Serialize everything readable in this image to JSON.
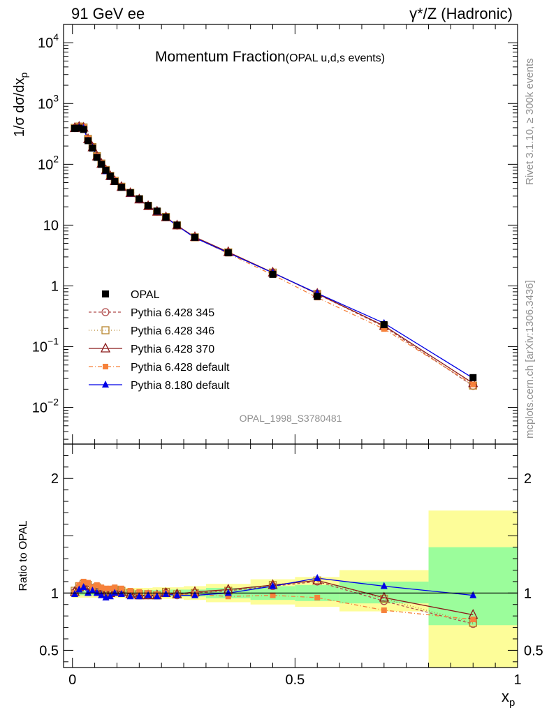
{
  "header": {
    "left": "91 GeV ee",
    "right": "γ*/Z (Hadronic)"
  },
  "chart_data": {
    "type": "scatter",
    "title": "Momentum Fraction",
    "subtitle": "(OPAL u,d,s events)",
    "xlabel": "x",
    "xlabel_sub": "p",
    "ylabel": "1/σ dσ/dx",
    "ylabel_sub": "p",
    "ratio_ylabel": "Ratio to OPAL",
    "watermark": "OPAL_1998_S3780481",
    "side_top": "Rivet 3.1.10, ≥ 300k events",
    "side_bottom": "mcplots.cern.ch [arXiv:1306.3436]",
    "xlim": [
      -0.02,
      1.0
    ],
    "ylim": [
      0.0025,
      20000
    ],
    "yscale": "log",
    "ratio_ylim": [
      0.35,
      2.3
    ],
    "x_ticks": [
      {
        "v": 0,
        "label": "0"
      },
      {
        "v": 0.5,
        "label": "0.5"
      },
      {
        "v": 1,
        "label": "1"
      }
    ],
    "y_ticks": [
      {
        "v": 10000,
        "base": "10",
        "exp": "4"
      },
      {
        "v": 1000,
        "base": "10",
        "exp": "3"
      },
      {
        "v": 100,
        "base": "10",
        "exp": "2"
      },
      {
        "v": 10,
        "base": "10",
        "exp": ""
      },
      {
        "v": 1,
        "base": "1",
        "exp": ""
      },
      {
        "v": 0.1,
        "base": "10",
        "exp": "−1"
      },
      {
        "v": 0.01,
        "base": "10",
        "exp": "−2"
      }
    ],
    "ratio_ticks": [
      {
        "v": 2,
        "label": "2"
      },
      {
        "v": 1,
        "label": "1"
      },
      {
        "v": 0.5,
        "label": "0.5"
      }
    ],
    "bins": [
      {
        "lo": 0.0,
        "hi": 0.01,
        "x": 0.005,
        "y": 390,
        "y_lo": 0.98,
        "y_hi": 1.02,
        "g_lo": 0.96,
        "g_hi": 1.04
      },
      {
        "lo": 0.01,
        "hi": 0.02,
        "x": 0.015,
        "y": 395,
        "y_lo": 0.98,
        "y_hi": 1.02,
        "g_lo": 0.96,
        "g_hi": 1.04
      },
      {
        "lo": 0.02,
        "hi": 0.03,
        "x": 0.025,
        "y": 375,
        "y_lo": 0.98,
        "y_hi": 1.02,
        "g_lo": 0.96,
        "g_hi": 1.04
      },
      {
        "lo": 0.03,
        "hi": 0.04,
        "x": 0.035,
        "y": 245,
        "y_lo": 0.98,
        "y_hi": 1.02,
        "g_lo": 0.96,
        "g_hi": 1.04
      },
      {
        "lo": 0.04,
        "hi": 0.05,
        "x": 0.045,
        "y": 185,
        "y_lo": 0.98,
        "y_hi": 1.02,
        "g_lo": 0.96,
        "g_hi": 1.04
      },
      {
        "lo": 0.05,
        "hi": 0.06,
        "x": 0.055,
        "y": 130,
        "y_lo": 0.98,
        "y_hi": 1.02,
        "g_lo": 0.96,
        "g_hi": 1.04
      },
      {
        "lo": 0.06,
        "hi": 0.07,
        "x": 0.065,
        "y": 100,
        "y_lo": 0.98,
        "y_hi": 1.02,
        "g_lo": 0.96,
        "g_hi": 1.04
      },
      {
        "lo": 0.07,
        "hi": 0.08,
        "x": 0.075,
        "y": 80,
        "y_lo": 0.98,
        "y_hi": 1.02,
        "g_lo": 0.96,
        "g_hi": 1.04
      },
      {
        "lo": 0.08,
        "hi": 0.09,
        "x": 0.085,
        "y": 64,
        "y_lo": 0.98,
        "y_hi": 1.02,
        "g_lo": 0.96,
        "g_hi": 1.04
      },
      {
        "lo": 0.09,
        "hi": 0.1,
        "x": 0.095,
        "y": 52,
        "y_lo": 0.98,
        "y_hi": 1.02,
        "g_lo": 0.96,
        "g_hi": 1.04
      },
      {
        "lo": 0.1,
        "hi": 0.12,
        "x": 0.11,
        "y": 42,
        "y_lo": 0.98,
        "y_hi": 1.02,
        "g_lo": 0.96,
        "g_hi": 1.04
      },
      {
        "lo": 0.12,
        "hi": 0.14,
        "x": 0.13,
        "y": 34,
        "y_lo": 0.975,
        "y_hi": 1.025,
        "g_lo": 0.955,
        "g_hi": 1.045
      },
      {
        "lo": 0.14,
        "hi": 0.16,
        "x": 0.15,
        "y": 27,
        "y_lo": 0.975,
        "y_hi": 1.025,
        "g_lo": 0.955,
        "g_hi": 1.045
      },
      {
        "lo": 0.16,
        "hi": 0.18,
        "x": 0.17,
        "y": 21,
        "y_lo": 0.975,
        "y_hi": 1.025,
        "g_lo": 0.955,
        "g_hi": 1.045
      },
      {
        "lo": 0.18,
        "hi": 0.2,
        "x": 0.19,
        "y": 17,
        "y_lo": 0.975,
        "y_hi": 1.025,
        "g_lo": 0.95,
        "g_hi": 1.05
      },
      {
        "lo": 0.2,
        "hi": 0.22,
        "x": 0.21,
        "y": 13.5,
        "y_lo": 0.975,
        "y_hi": 1.025,
        "g_lo": 0.95,
        "g_hi": 1.05
      },
      {
        "lo": 0.22,
        "hi": 0.25,
        "x": 0.235,
        "y": 10,
        "y_lo": 0.97,
        "y_hi": 1.03,
        "g_lo": 0.95,
        "g_hi": 1.05
      },
      {
        "lo": 0.25,
        "hi": 0.3,
        "x": 0.275,
        "y": 6.3,
        "y_lo": 0.97,
        "y_hi": 1.03,
        "g_lo": 0.94,
        "g_hi": 1.06
      },
      {
        "lo": 0.3,
        "hi": 0.4,
        "x": 0.35,
        "y": 3.5,
        "y_lo": 0.955,
        "y_hi": 1.045,
        "g_lo": 0.92,
        "g_hi": 1.08
      },
      {
        "lo": 0.4,
        "hi": 0.5,
        "x": 0.45,
        "y": 1.55,
        "y_lo": 0.94,
        "y_hi": 1.06,
        "g_lo": 0.9,
        "g_hi": 1.12
      },
      {
        "lo": 0.5,
        "hi": 0.6,
        "x": 0.55,
        "y": 0.67,
        "y_lo": 0.93,
        "y_hi": 1.07,
        "g_lo": 0.88,
        "g_hi": 1.14
      },
      {
        "lo": 0.6,
        "hi": 0.8,
        "x": 0.7,
        "y": 0.23,
        "y_lo": 0.91,
        "y_hi": 1.1,
        "g_lo": 0.84,
        "g_hi": 1.2
      },
      {
        "lo": 0.8,
        "hi": 1.0,
        "x": 0.9,
        "y": 0.031,
        "y_lo": 0.72,
        "y_hi": 1.4,
        "g_lo": 0.35,
        "g_hi": 1.72
      }
    ],
    "ref_name": "OPAL",
    "series": [
      {
        "name": "Pythia 6.428 345",
        "color": "#b04a4a",
        "marker": "open-circle",
        "dash": "4,3",
        "ratio": [
          1.01,
          1.05,
          1.07,
          1.06,
          1.03,
          1.04,
          1.02,
          1.0,
          1.0,
          1.02,
          1.01,
          1.0,
          0.98,
          0.98,
          0.98,
          1.0,
          0.98,
          1.0,
          1.02,
          1.06,
          1.1,
          0.93,
          0.73
        ]
      },
      {
        "name": "Pythia 6.428 346",
        "color": "#b8862e",
        "marker": "open-square",
        "dash": "1,3",
        "ratio": [
          1.02,
          1.06,
          1.08,
          1.07,
          1.04,
          1.05,
          1.03,
          1.01,
          1.01,
          1.03,
          1.02,
          1.0,
          0.99,
          0.99,
          0.98,
          1.01,
          0.99,
          1.0,
          1.02,
          1.07,
          1.11,
          0.95,
          0.74
        ]
      },
      {
        "name": "Pythia 6.428 370",
        "color": "#8b1a1a",
        "marker": "open-triangle",
        "dash": "",
        "ratio": [
          1.01,
          1.05,
          1.07,
          1.06,
          1.03,
          1.04,
          1.02,
          1.0,
          1.0,
          1.02,
          1.01,
          0.99,
          0.98,
          0.98,
          0.98,
          1.0,
          0.99,
          1.01,
          1.03,
          1.07,
          1.11,
          0.96,
          0.81
        ]
      },
      {
        "name": "Pythia 6.428 default",
        "color": "#f6813b",
        "marker": "filled-square",
        "dash": "6,3,1,3",
        "ratio": [
          1.0,
          1.07,
          1.1,
          1.09,
          1.05,
          1.07,
          1.05,
          1.04,
          1.04,
          1.05,
          1.04,
          1.02,
          1.01,
          1.0,
          0.99,
          1.0,
          0.98,
          0.99,
          0.97,
          0.98,
          0.96,
          0.85,
          0.77
        ]
      },
      {
        "name": "Pythia 8.180 default",
        "color": "#0000e6",
        "marker": "filled-triangle",
        "dash": "",
        "ratio": [
          0.99,
          1.03,
          1.05,
          1.0,
          1.02,
          1.0,
          0.98,
          0.96,
          0.97,
          1.0,
          0.99,
          0.97,
          0.97,
          0.98,
          0.97,
          0.99,
          0.98,
          0.98,
          1.0,
          1.06,
          1.13,
          1.06,
          0.98
        ]
      }
    ],
    "colors": {
      "band_inner": "#9bfd9b",
      "band_outer": "#fdfd99",
      "ref": "#000000"
    },
    "legend_position": "bottom-left"
  }
}
